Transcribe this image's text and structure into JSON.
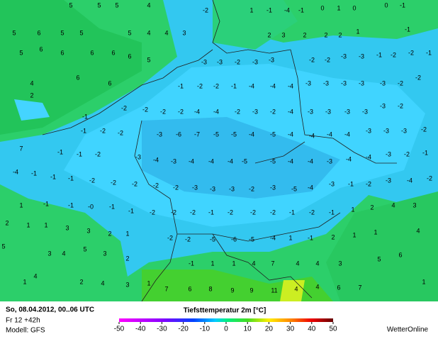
{
  "header": {
    "date": "So, 08.04.2012, 00..06 UTC",
    "run": "Fr 12 +42h",
    "model": "Modell: GFS",
    "title": "Tiefsttemperatur  2m [°C]",
    "brand": "WetterOnline"
  },
  "colorbar": {
    "ticks": [
      -50,
      -40,
      -30,
      -20,
      -10,
      0,
      10,
      20,
      30,
      40,
      50
    ]
  },
  "map": {
    "values": [
      "5",
      "5",
      "5",
      "4",
      "-2",
      "1",
      "-1",
      "-4",
      "-1",
      "0",
      "1",
      "0",
      "0",
      "-1",
      "5",
      "6",
      "5",
      "5",
      "5",
      "4",
      "4",
      "3",
      "2",
      "3",
      "2",
      "2",
      "2",
      "1",
      "-1",
      "5",
      "6",
      "6",
      "6",
      "6",
      "6",
      "5",
      "-3",
      "-3",
      "-2",
      "-3",
      "-3",
      "-2",
      "-2",
      "-3",
      "-3",
      "-1",
      "-2",
      "-2",
      "-1",
      "4",
      "6",
      "6",
      "-1",
      "-2",
      "-2",
      "-1",
      "-4",
      "-4",
      "-4",
      "-3",
      "-3",
      "-3",
      "-3",
      "-3",
      "-2",
      "-2",
      "2",
      "-1",
      "-2",
      "-2",
      "-2",
      "-2",
      "-4",
      "-4",
      "-2",
      "-3",
      "-2",
      "-4",
      "-3",
      "-3",
      "-3",
      "-3",
      "-3",
      "-2",
      "-1",
      "-2",
      "-2",
      "-3",
      "-6",
      "-7",
      "-5",
      "-5",
      "-4",
      "-5",
      "-4",
      "-4",
      "-4",
      "-4",
      "-3",
      "-3",
      "-3",
      "-2",
      "7",
      "-1",
      "-1",
      "-2",
      "-3",
      "-4",
      "-3",
      "-4",
      "-4",
      "-4",
      "-5",
      "-5",
      "-4",
      "-4",
      "-3",
      "-4",
      "-4",
      "-3",
      "-2",
      "-1",
      "-4",
      "-1",
      "-1",
      "-1",
      "-2",
      "-2",
      "-2",
      "-2",
      "-2",
      "-3",
      "-3",
      "-3",
      "-2",
      "-3",
      "-5",
      "-4",
      "-3",
      "-1",
      "-2",
      "-3",
      "-4",
      "-2",
      "1",
      "-1",
      "-1",
      "-0",
      "-1",
      "-1",
      "-2",
      "-2",
      "-2",
      "-1",
      "-2",
      "-2",
      "-2",
      "-1",
      "-2",
      "-1",
      "1",
      "2",
      "4",
      "3",
      "2",
      "1",
      "1",
      "3",
      "3",
      "2",
      "1",
      "-2",
      "-2",
      "-5",
      "-6",
      "-5",
      "-4",
      "1",
      "-1",
      "2",
      "1",
      "1",
      "4",
      "5",
      "3",
      "4",
      "5",
      "3",
      "2",
      "-1",
      "1",
      "1",
      "4",
      "7",
      "4",
      "4",
      "3",
      "5",
      "6",
      "1",
      "4",
      "2",
      "4",
      "3",
      "1",
      "7",
      "6",
      "8",
      "9",
      "9",
      "11",
      "4",
      "4",
      "6",
      "7",
      "1"
    ]
  }
}
